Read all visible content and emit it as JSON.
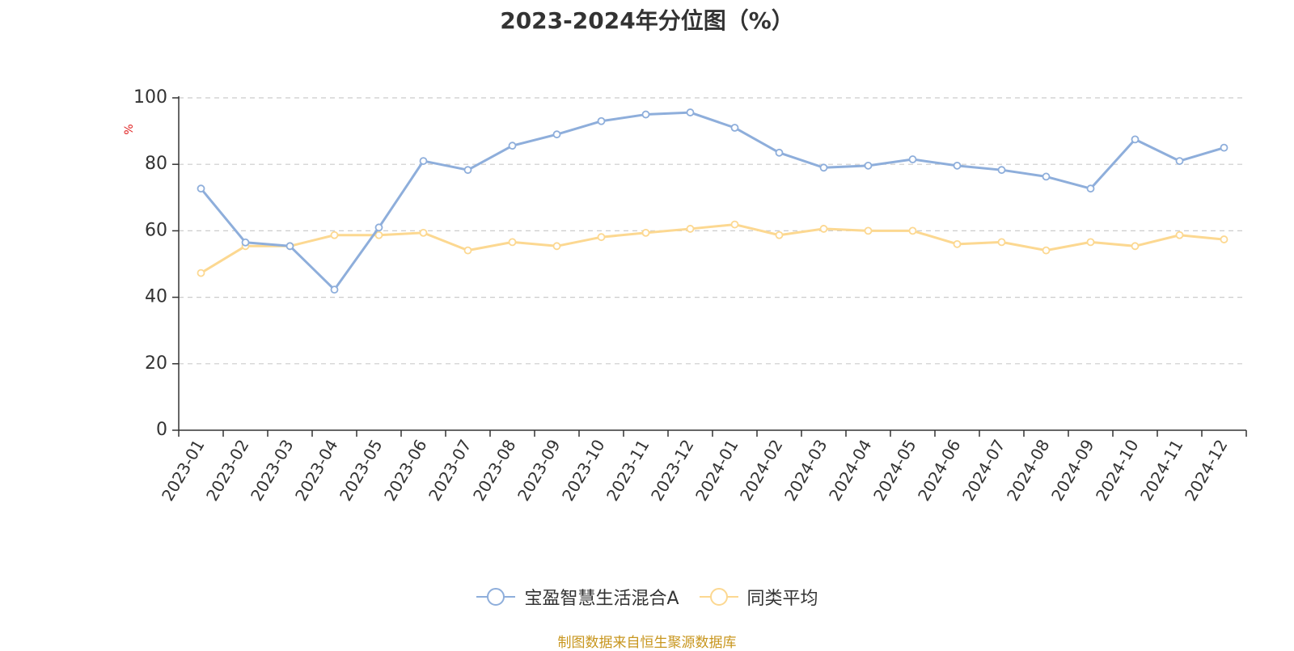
{
  "chart_data": {
    "type": "line",
    "title": "2023-2024年分位图（%）",
    "ylabel": "%",
    "xlabel": "",
    "ylim": [
      0,
      100
    ],
    "yticks": [
      0,
      20,
      40,
      60,
      80,
      100
    ],
    "grid": true,
    "legend_position": "bottom",
    "categories": [
      "2023-01",
      "2023-02",
      "2023-03",
      "2023-04",
      "2023-05",
      "2023-06",
      "2023-07",
      "2023-08",
      "2023-09",
      "2023-10",
      "2023-11",
      "2023-12",
      "2024-01",
      "2024-02",
      "2024-03",
      "2024-04",
      "2024-05",
      "2024-06",
      "2024-07",
      "2024-08",
      "2024-09",
      "2024-10",
      "2024-11",
      "2024-12"
    ],
    "series": [
      {
        "name": "宝盈智慧生活混合A",
        "color": "#8eaedb",
        "values": [
          72.7,
          56.5,
          55.4,
          42.3,
          61.0,
          81.0,
          78.3,
          85.6,
          89.0,
          93.0,
          95.0,
          95.6,
          91.0,
          83.5,
          79.0,
          79.6,
          81.5,
          79.6,
          78.3,
          76.3,
          72.7,
          87.5,
          81.0,
          85.0
        ]
      },
      {
        "name": "同类平均",
        "color": "#fcd891",
        "values": [
          47.3,
          55.4,
          55.4,
          58.7,
          58.7,
          59.4,
          54.1,
          56.6,
          55.4,
          58.1,
          59.4,
          60.6,
          61.9,
          58.7,
          60.6,
          60.0,
          60.0,
          56.0,
          56.6,
          54.1,
          56.6,
          55.4,
          58.7,
          57.4
        ]
      }
    ]
  },
  "source_text": "制图数据来自恒生聚源数据库"
}
